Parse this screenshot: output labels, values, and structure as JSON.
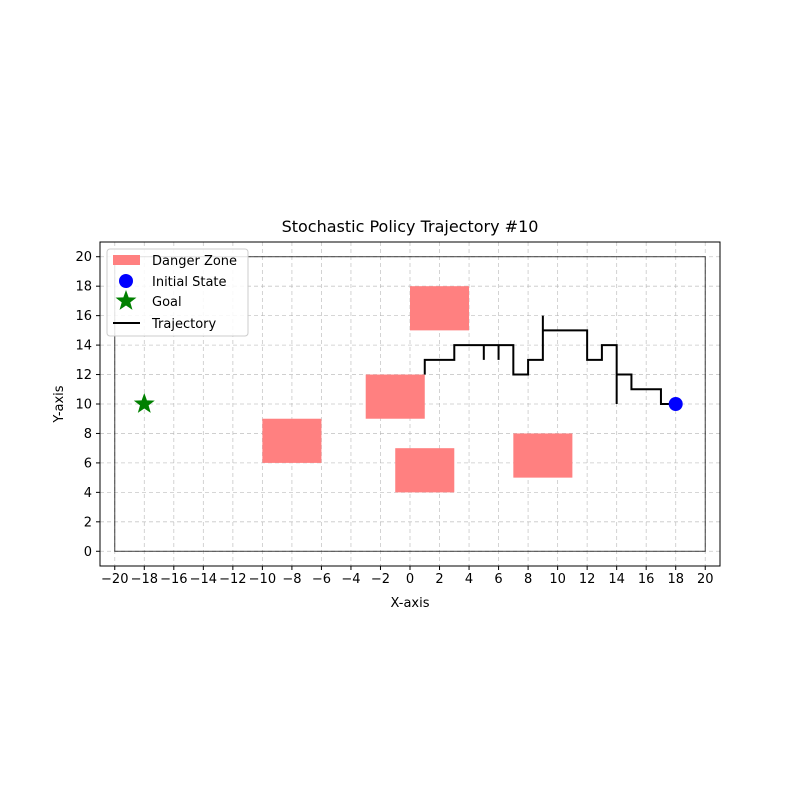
{
  "chart_data": {
    "type": "scatter",
    "title": "Stochastic Policy Trajectory #10",
    "xlabel": "X-axis",
    "ylabel": "Y-axis",
    "xlim": [
      -21,
      21
    ],
    "ylim": [
      -1,
      21
    ],
    "xticks": [
      -20,
      -18,
      -16,
      -14,
      -12,
      -10,
      -8,
      -6,
      -4,
      -2,
      0,
      2,
      4,
      6,
      8,
      10,
      12,
      14,
      16,
      18,
      20
    ],
    "yticks": [
      0,
      2,
      4,
      6,
      8,
      10,
      12,
      14,
      16,
      18,
      20
    ],
    "grid": true,
    "boundary": {
      "x0": -20,
      "y0": 0,
      "x1": 20,
      "y1": 20,
      "color": "#000000"
    },
    "danger_zones": [
      {
        "x0": 0,
        "y0": 15,
        "x1": 4,
        "y1": 18
      },
      {
        "x0": -3,
        "y0": 9,
        "x1": 1,
        "y1": 12
      },
      {
        "x0": -10,
        "y0": 6,
        "x1": -6,
        "y1": 9
      },
      {
        "x0": -1,
        "y0": 4,
        "x1": 3,
        "y1": 7
      },
      {
        "x0": 7,
        "y0": 5,
        "x1": 11,
        "y1": 8
      }
    ],
    "danger_color": "#ff8080",
    "initial_state": {
      "x": 18,
      "y": 10,
      "color": "#0000ff"
    },
    "goal": {
      "x": -18,
      "y": 10,
      "color": "#008000"
    },
    "trajectory": {
      "color": "#000000",
      "points": [
        [
          18,
          10
        ],
        [
          17,
          10
        ],
        [
          17,
          11
        ],
        [
          15,
          11
        ],
        [
          15,
          12
        ],
        [
          14,
          12
        ],
        [
          14,
          10
        ],
        [
          14,
          14
        ],
        [
          13,
          14
        ],
        [
          13,
          13
        ],
        [
          12,
          13
        ],
        [
          12,
          15
        ],
        [
          9,
          15
        ],
        [
          9,
          16
        ],
        [
          9,
          13
        ],
        [
          8,
          13
        ],
        [
          8,
          12
        ],
        [
          7,
          12
        ],
        [
          7,
          14
        ],
        [
          6,
          14
        ],
        [
          6,
          13
        ],
        [
          6,
          14
        ],
        [
          5,
          14
        ],
        [
          5,
          13
        ],
        [
          5,
          14
        ],
        [
          3,
          14
        ],
        [
          3,
          13
        ],
        [
          1,
          13
        ],
        [
          1,
          12
        ]
      ]
    },
    "legend": {
      "position": "top-left",
      "entries": [
        "Danger Zone",
        "Initial State",
        "Goal",
        "Trajectory"
      ]
    }
  }
}
